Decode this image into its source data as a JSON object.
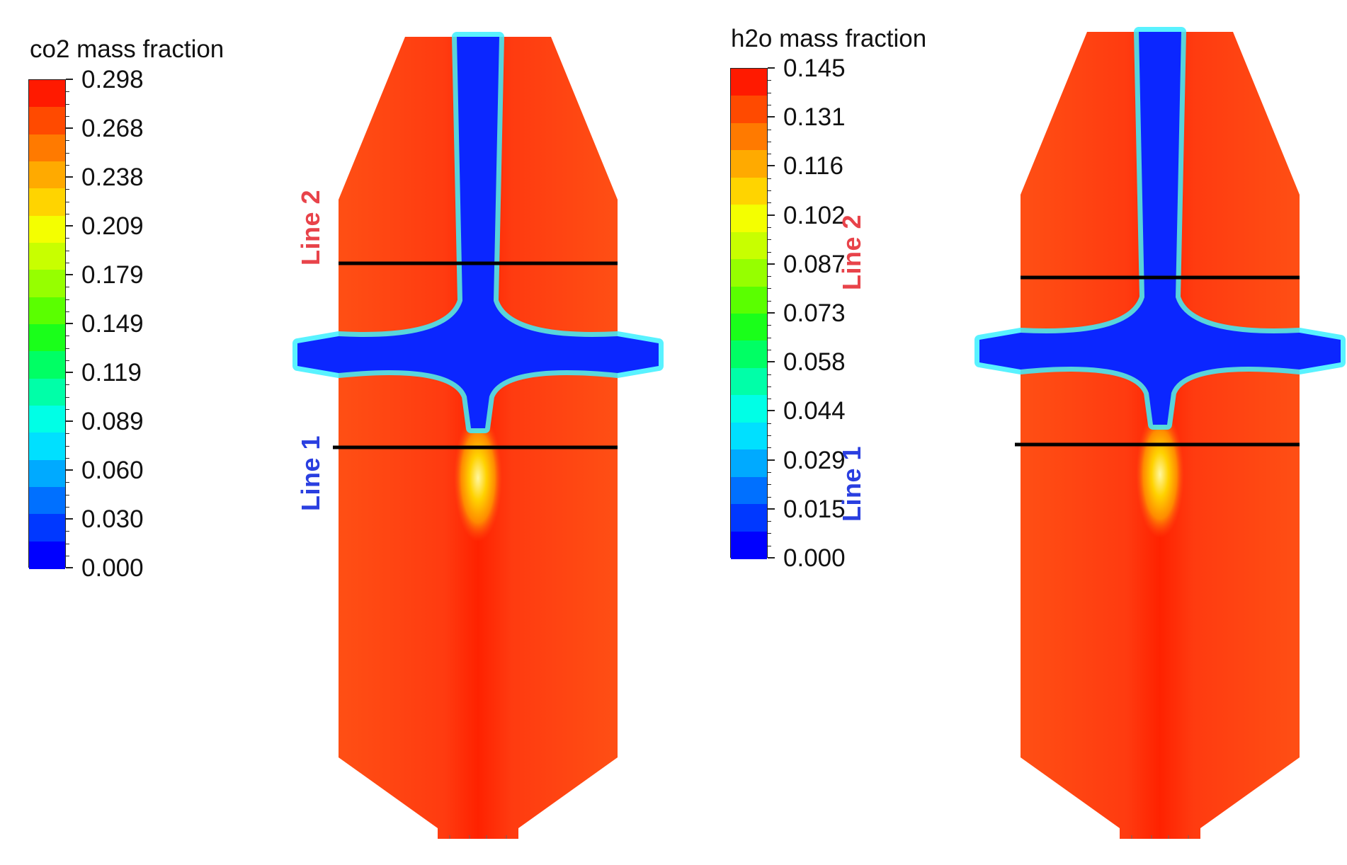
{
  "panels": [
    {
      "id": "co2",
      "colorbar": {
        "title": "co2 mass fraction",
        "labels": [
          "0.298",
          "0.268",
          "0.238",
          "0.209",
          "0.179",
          "0.149",
          "0.119",
          "0.089",
          "0.060",
          "0.030",
          "0.000"
        ]
      },
      "lines": [
        {
          "label": "Line 2",
          "color": "#e8434a"
        },
        {
          "label": "Line 1",
          "color": "#2a3fe0"
        }
      ]
    },
    {
      "id": "h2o",
      "colorbar": {
        "title": "h2o mass fraction",
        "labels": [
          "0.145",
          "0.131",
          "0.116",
          "0.102",
          "0.087",
          "0.073",
          "0.058",
          "0.044",
          "0.029",
          "0.015",
          "0.000"
        ]
      },
      "lines": [
        {
          "label": "Line 2",
          "color": "#e8434a"
        },
        {
          "label": "Line 1",
          "color": "#2a3fe0"
        }
      ]
    }
  ],
  "colorbar_colors": [
    "#ff1a00",
    "#ff4a00",
    "#ff7a00",
    "#ffaa00",
    "#ffd400",
    "#f4ff00",
    "#c8ff00",
    "#96ff00",
    "#5aff00",
    "#1aff1a",
    "#00ff64",
    "#00ffa8",
    "#00ffe6",
    "#00e0ff",
    "#00aaff",
    "#0070ff",
    "#0038ff",
    "#0000ff"
  ],
  "palette": {
    "field_red": "#ff3b10",
    "field_orange_red": "#ff4f14",
    "field_core": "#ff2200",
    "jet_blue": "#0b26ff",
    "line_black": "#000000"
  }
}
